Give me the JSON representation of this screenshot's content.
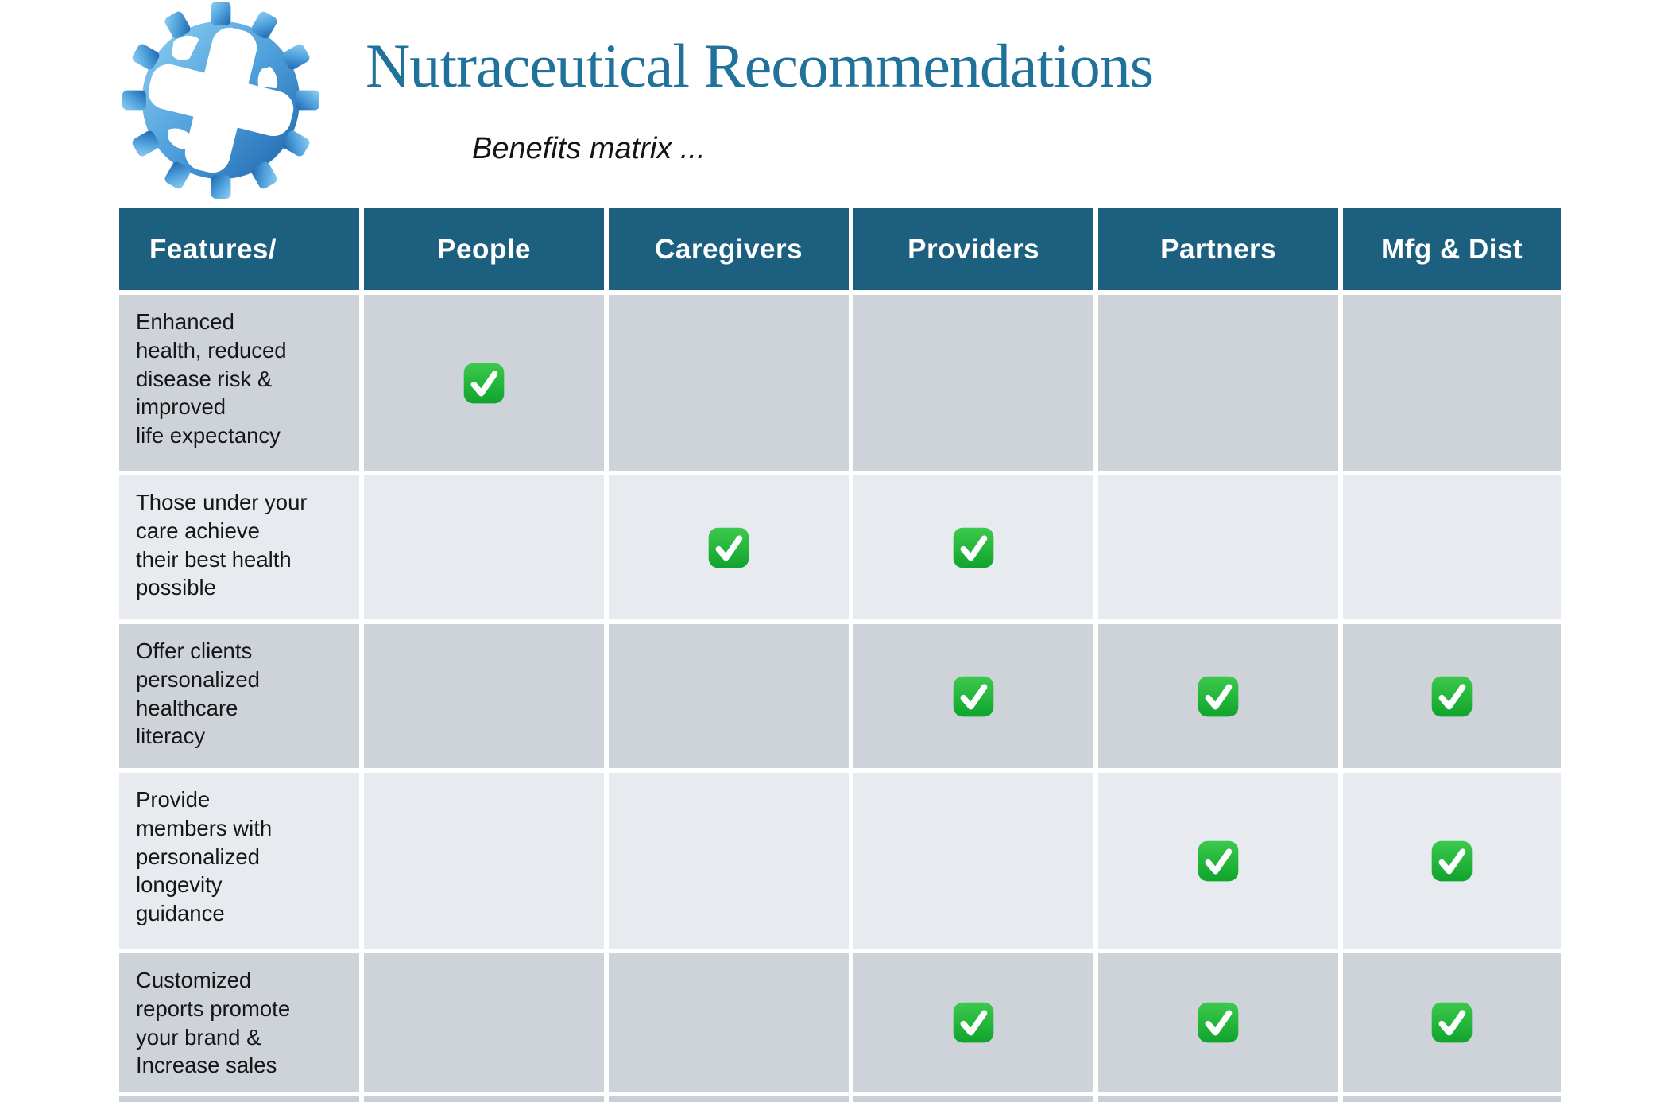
{
  "page": {
    "title": "Nutraceutical Recommendations",
    "subtitle": "Benefits matrix ...",
    "logo_icon": "blue-gear-with-cross-cutout"
  },
  "colors": {
    "title_text": "#20729B",
    "header_bg": "#1D5F7F",
    "header_text": "#FFFFFF",
    "row_dark": "#CED3DA",
    "row_light": "#E7EAEE",
    "check_green_top": "#3CC94D",
    "check_green_bottom": "#10A42C"
  },
  "table": {
    "check_icon": "white-check-mark-in-green-rounded-square",
    "columns": [
      "Features/",
      "People",
      "Caregivers",
      "Providers",
      "Partners",
      "Mfg & Dist"
    ],
    "rows": [
      {
        "feature": "Enhanced\nhealth, reduced\ndisease risk &\nimproved\nlife expectancy",
        "checks": [
          true,
          false,
          false,
          false,
          false
        ]
      },
      {
        "feature": "Those under your\ncare achieve\ntheir best health\npossible",
        "checks": [
          false,
          true,
          true,
          false,
          false
        ]
      },
      {
        "feature": "Offer clients\npersonalized\nhealthcare\nliteracy",
        "checks": [
          false,
          false,
          true,
          true,
          true
        ]
      },
      {
        "feature": "Provide\nmembers with\npersonalized\nlongevity\nguidance",
        "checks": [
          false,
          false,
          false,
          true,
          true
        ]
      },
      {
        "feature": "Customized\nreports promote\nyour brand &\nIncrease sales",
        "checks": [
          false,
          false,
          true,
          true,
          true
        ]
      }
    ]
  }
}
